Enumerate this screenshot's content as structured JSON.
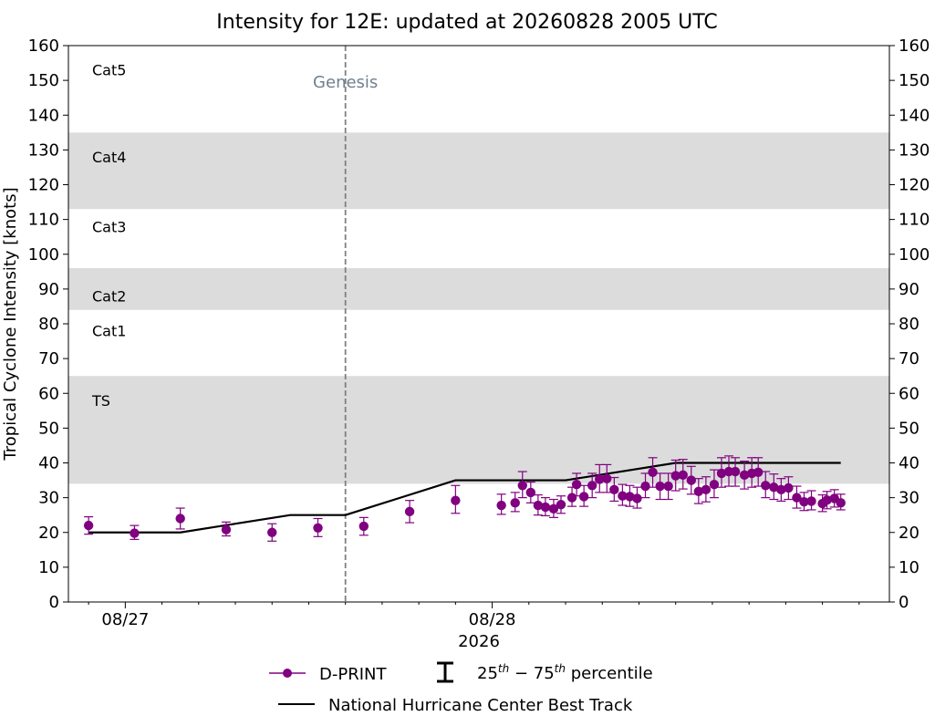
{
  "chart_data": {
    "type": "scatter",
    "title": "Intensity for 12E: updated at 20260828 2005 UTC",
    "ylabel": "Tropical Cyclone Intensity [knots]",
    "xlabel": "2026",
    "ylim": [
      0,
      160
    ],
    "yticks": [
      0,
      10,
      20,
      30,
      40,
      50,
      60,
      70,
      80,
      90,
      100,
      110,
      120,
      130,
      140,
      150,
      160
    ],
    "xlim_hours": [
      -30.2,
      59.3
    ],
    "xticks": [
      {
        "hour": -24,
        "label": "08/27"
      },
      {
        "hour": 16,
        "label": "08/28"
      }
    ],
    "minor_tick_hours": [
      -28,
      -20,
      -16,
      -12,
      -8,
      -4,
      0,
      4,
      8,
      12,
      20,
      24,
      28,
      32,
      36,
      40,
      44,
      48,
      52,
      56
    ],
    "bands": [
      {
        "from": 34,
        "to": 65,
        "label": "TS",
        "label_y": 58,
        "shaded": true
      },
      {
        "from": 65,
        "to": 84,
        "label": "Cat1",
        "label_y": 78,
        "shaded": false
      },
      {
        "from": 84,
        "to": 96,
        "label": "Cat2",
        "label_y": 88,
        "shaded": true
      },
      {
        "from": 96,
        "to": 113,
        "label": "Cat3",
        "label_y": 108,
        "shaded": false
      },
      {
        "from": 113,
        "to": 135,
        "label": "Cat4",
        "label_y": 128,
        "shaded": true
      },
      {
        "from": 135,
        "to": 160,
        "label": "Cat5",
        "label_y": 153,
        "shaded": false
      }
    ],
    "band_color": "#dcdcdc",
    "genesis": {
      "hour": 0,
      "label": "Genesis",
      "color": "#708090"
    },
    "series": [
      {
        "name": "D-PRINT",
        "color": "#800080",
        "points": [
          {
            "x": -28.0,
            "y": 22.0,
            "lo": 19.5,
            "hi": 24.5
          },
          {
            "x": -23.0,
            "y": 19.8,
            "lo": 18.0,
            "hi": 22.0
          },
          {
            "x": -18.0,
            "y": 24.0,
            "lo": 21.0,
            "hi": 27.0
          },
          {
            "x": -13.0,
            "y": 20.8,
            "lo": 19.0,
            "hi": 23.0
          },
          {
            "x": -8.0,
            "y": 20.0,
            "lo": 17.5,
            "hi": 22.5
          },
          {
            "x": -3.0,
            "y": 21.3,
            "lo": 18.8,
            "hi": 24.0
          },
          {
            "x": 2.0,
            "y": 21.8,
            "lo": 19.2,
            "hi": 24.3
          },
          {
            "x": 7.0,
            "y": 26.0,
            "lo": 22.8,
            "hi": 29.2
          },
          {
            "x": 12.0,
            "y": 29.2,
            "lo": 25.5,
            "hi": 33.5
          },
          {
            "x": 17.0,
            "y": 27.8,
            "lo": 25.2,
            "hi": 31.0
          },
          {
            "x": 18.5,
            "y": 28.5,
            "lo": 26.0,
            "hi": 31.5
          },
          {
            "x": 19.3,
            "y": 33.5,
            "lo": 30.0,
            "hi": 37.5
          },
          {
            "x": 20.2,
            "y": 31.5,
            "lo": 28.5,
            "hi": 34.5
          },
          {
            "x": 21.0,
            "y": 27.8,
            "lo": 25.0,
            "hi": 30.8
          },
          {
            "x": 21.8,
            "y": 27.3,
            "lo": 24.8,
            "hi": 30.0
          },
          {
            "x": 22.7,
            "y": 26.8,
            "lo": 24.3,
            "hi": 29.5
          },
          {
            "x": 23.5,
            "y": 28.0,
            "lo": 25.5,
            "hi": 30.5
          },
          {
            "x": 24.7,
            "y": 30.0,
            "lo": 27.5,
            "hi": 33.0
          },
          {
            "x": 25.2,
            "y": 33.8,
            "lo": 30.5,
            "hi": 37.0
          },
          {
            "x": 26.0,
            "y": 30.3,
            "lo": 27.5,
            "hi": 33.5
          },
          {
            "x": 26.9,
            "y": 33.5,
            "lo": 30.0,
            "hi": 37.0
          },
          {
            "x": 27.7,
            "y": 35.3,
            "lo": 31.5,
            "hi": 39.5
          },
          {
            "x": 28.5,
            "y": 35.5,
            "lo": 31.5,
            "hi": 39.5
          },
          {
            "x": 29.3,
            "y": 32.3,
            "lo": 29.0,
            "hi": 35.8
          },
          {
            "x": 30.2,
            "y": 30.5,
            "lo": 27.8,
            "hi": 33.8
          },
          {
            "x": 31.0,
            "y": 30.3,
            "lo": 27.5,
            "hi": 33.5
          },
          {
            "x": 31.8,
            "y": 29.8,
            "lo": 27.0,
            "hi": 33.0
          },
          {
            "x": 32.7,
            "y": 33.3,
            "lo": 30.0,
            "hi": 37.0
          },
          {
            "x": 33.5,
            "y": 37.3,
            "lo": 33.0,
            "hi": 41.5
          },
          {
            "x": 34.3,
            "y": 33.3,
            "lo": 29.5,
            "hi": 37.0
          },
          {
            "x": 35.2,
            "y": 33.3,
            "lo": 29.5,
            "hi": 37.0
          },
          {
            "x": 36.0,
            "y": 36.3,
            "lo": 32.0,
            "hi": 40.8
          },
          {
            "x": 36.8,
            "y": 36.5,
            "lo": 32.5,
            "hi": 41.0
          },
          {
            "x": 37.7,
            "y": 35.0,
            "lo": 31.0,
            "hi": 39.0
          },
          {
            "x": 38.5,
            "y": 31.8,
            "lo": 28.3,
            "hi": 35.5
          },
          {
            "x": 39.3,
            "y": 32.3,
            "lo": 28.8,
            "hi": 36.0
          },
          {
            "x": 40.2,
            "y": 33.8,
            "lo": 30.0,
            "hi": 38.0
          },
          {
            "x": 41.0,
            "y": 37.0,
            "lo": 33.0,
            "hi": 41.5
          },
          {
            "x": 41.8,
            "y": 37.5,
            "lo": 33.3,
            "hi": 42.0
          },
          {
            "x": 42.5,
            "y": 37.5,
            "lo": 33.3,
            "hi": 41.5
          },
          {
            "x": 43.5,
            "y": 36.5,
            "lo": 32.5,
            "hi": 40.5
          },
          {
            "x": 44.3,
            "y": 37.0,
            "lo": 33.0,
            "hi": 41.5
          },
          {
            "x": 45.0,
            "y": 37.3,
            "lo": 33.3,
            "hi": 41.5
          },
          {
            "x": 45.8,
            "y": 33.5,
            "lo": 30.0,
            "hi": 37.5
          },
          {
            "x": 46.7,
            "y": 33.0,
            "lo": 29.5,
            "hi": 36.8
          },
          {
            "x": 47.5,
            "y": 32.3,
            "lo": 29.0,
            "hi": 35.5
          },
          {
            "x": 48.3,
            "y": 32.8,
            "lo": 29.5,
            "hi": 36.0
          },
          {
            "x": 49.2,
            "y": 30.0,
            "lo": 27.0,
            "hi": 33.3
          },
          {
            "x": 50.0,
            "y": 28.8,
            "lo": 26.3,
            "hi": 31.5
          },
          {
            "x": 50.8,
            "y": 29.0,
            "lo": 26.5,
            "hi": 32.0
          },
          {
            "x": 52.0,
            "y": 28.3,
            "lo": 26.0,
            "hi": 30.8
          },
          {
            "x": 52.5,
            "y": 29.3,
            "lo": 26.8,
            "hi": 31.8
          },
          {
            "x": 53.3,
            "y": 29.8,
            "lo": 27.3,
            "hi": 32.3
          },
          {
            "x": 54.0,
            "y": 28.5,
            "lo": 26.5,
            "hi": 31.0
          }
        ]
      },
      {
        "name": "National Hurricane Center Best Track",
        "color": "#000000",
        "points": [
          {
            "x": -28,
            "y": 20
          },
          {
            "x": -24,
            "y": 20
          },
          {
            "x": -18,
            "y": 20
          },
          {
            "x": -12,
            "y": 22.5
          },
          {
            "x": -6,
            "y": 25
          },
          {
            "x": 0,
            "y": 25
          },
          {
            "x": 6,
            "y": 30
          },
          {
            "x": 12,
            "y": 35
          },
          {
            "x": 18,
            "y": 35
          },
          {
            "x": 24,
            "y": 35
          },
          {
            "x": 30,
            "y": 37.5
          },
          {
            "x": 36,
            "y": 40
          },
          {
            "x": 42,
            "y": 40
          },
          {
            "x": 48,
            "y": 40
          },
          {
            "x": 54,
            "y": 40
          },
          {
            "x": 60,
            "y": 40
          },
          {
            "x": 66,
            "y": 40
          },
          {
            "x": 72,
            "y": 40
          },
          {
            "x": 78,
            "y": 40
          },
          {
            "x": 84,
            "y": 40
          }
        ]
      }
    ],
    "legend": {
      "placement": "bottom",
      "dprint_label": "D-PRINT",
      "percentile_label": "25th – 75th percentile",
      "percentile_label_parts": [
        "25",
        "th",
        " − 75",
        "th",
        " percentile"
      ],
      "best_track_label": "National Hurricane Center Best Track"
    }
  }
}
